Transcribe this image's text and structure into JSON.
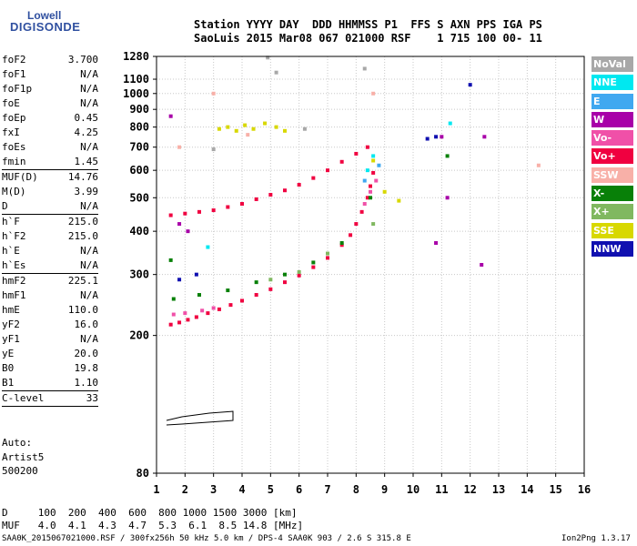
{
  "logo": {
    "line1": "Lowell",
    "line2": "DIGISONDE"
  },
  "header": {
    "line1": "Station YYYY DAY  DDD HHMMSS P1  FFS S AXN PPS IGA PS",
    "line2": "SaoLuis 2015 Mar08 067 021000 RSF    1 715 100 00- 11"
  },
  "params": [
    {
      "key": "foF2",
      "val": "3.700"
    },
    {
      "key": "foF1",
      "val": "N/A"
    },
    {
      "key": "foF1p",
      "val": "N/A"
    },
    {
      "key": "foE",
      "val": "N/A"
    },
    {
      "key": "foEp",
      "val": "0.45"
    },
    {
      "key": "fxI",
      "val": "4.25"
    },
    {
      "key": "foEs",
      "val": "N/A"
    },
    {
      "key": "fmin",
      "val": "1.45"
    },
    {
      "key": "MUF(D)",
      "val": "14.76",
      "sep": true
    },
    {
      "key": "M(D)",
      "val": "3.99"
    },
    {
      "key": "D",
      "val": "N/A"
    },
    {
      "key": "h`F",
      "val": "215.0",
      "sep": true
    },
    {
      "key": "h`F2",
      "val": "215.0"
    },
    {
      "key": "h`E",
      "val": "N/A"
    },
    {
      "key": "h`Es",
      "val": "N/A"
    },
    {
      "key": "hmF2",
      "val": "225.1",
      "sep": true
    },
    {
      "key": "hmF1",
      "val": "N/A"
    },
    {
      "key": "hmE",
      "val": "110.0"
    },
    {
      "key": "yF2",
      "val": "16.0"
    },
    {
      "key": "yF1",
      "val": "N/A"
    },
    {
      "key": "yE",
      "val": "20.0"
    },
    {
      "key": "B0",
      "val": "19.8"
    },
    {
      "key": "B1",
      "val": "1.10"
    },
    {
      "key": "C-level",
      "val": "33",
      "sep": true
    }
  ],
  "auto": {
    "line1": "Auto:",
    "line2": "Artist5",
    "line3": "500200"
  },
  "footer": {
    "d_line": "D     100  200  400  600  800 1000 1500 3000 [km]",
    "muf_line": "MUF   4.0  4.1  4.3  4.7  5.3  6.1  8.5 14.8 [MHz]",
    "info": "SAA0K_2015067021000.RSF / 300fx256h 50 kHz 5.0 km / DPS-4 SAA0K 903 / 2.6 S 315.8 E",
    "version": "Ion2Png 1.3.17"
  },
  "legend": [
    {
      "label": "NoVal",
      "color": "#a8a8a8"
    },
    {
      "label": "NNE",
      "color": "#00e8f0"
    },
    {
      "label": "E",
      "color": "#40a8f0"
    },
    {
      "label": "W",
      "color": "#a800a8"
    },
    {
      "label": "Vo-",
      "color": "#f050a8"
    },
    {
      "label": "Vo+",
      "color": "#f00040"
    },
    {
      "label": "SSW",
      "color": "#f8b0a8"
    },
    {
      "label": "X-",
      "color": "#088008"
    },
    {
      "label": "X+",
      "color": "#80b860"
    },
    {
      "label": "SSE",
      "color": "#d8d800"
    },
    {
      "label": "NNW",
      "color": "#1010b0"
    }
  ],
  "chart_data": {
    "type": "scatter",
    "title": "",
    "xlabel": "",
    "ylabel": "",
    "xlim": [
      1,
      16
    ],
    "ylim": [
      80,
      1280
    ],
    "yscale": "log",
    "grid": true,
    "x_ticks": [
      1,
      2,
      3,
      4,
      5,
      6,
      7,
      8,
      9,
      10,
      11,
      12,
      13,
      14,
      15,
      16
    ],
    "y_ticks": [
      80,
      200,
      300,
      400,
      500,
      600,
      700,
      800,
      900,
      1000,
      1100,
      1280
    ],
    "legend_position": "right",
    "series": [
      {
        "name": "Vo+",
        "color": "#f00040",
        "points": [
          [
            1.5,
            215
          ],
          [
            1.8,
            218
          ],
          [
            2.1,
            222
          ],
          [
            2.4,
            226
          ],
          [
            2.8,
            232
          ],
          [
            3.2,
            238
          ],
          [
            3.6,
            245
          ],
          [
            4.0,
            252
          ],
          [
            4.5,
            262
          ],
          [
            5.0,
            272
          ],
          [
            5.5,
            285
          ],
          [
            6.0,
            298
          ],
          [
            6.5,
            315
          ],
          [
            7.0,
            335
          ],
          [
            7.5,
            365
          ],
          [
            7.8,
            390
          ],
          [
            8.0,
            420
          ],
          [
            8.2,
            455
          ],
          [
            8.4,
            500
          ],
          [
            8.5,
            540
          ],
          [
            8.6,
            590
          ],
          [
            1.5,
            445
          ],
          [
            2.0,
            450
          ],
          [
            2.5,
            455
          ],
          [
            3.0,
            460
          ],
          [
            3.5,
            470
          ],
          [
            4.0,
            480
          ],
          [
            4.5,
            495
          ],
          [
            5.0,
            510
          ],
          [
            5.5,
            525
          ],
          [
            6.0,
            545
          ],
          [
            6.5,
            570
          ],
          [
            7.0,
            600
          ],
          [
            7.5,
            635
          ],
          [
            8.0,
            670
          ],
          [
            8.4,
            700
          ]
        ]
      },
      {
        "name": "Vo-",
        "color": "#f050a8",
        "points": [
          [
            1.6,
            230
          ],
          [
            2.0,
            232
          ],
          [
            2.6,
            236
          ],
          [
            3.0,
            240
          ],
          [
            8.3,
            480
          ],
          [
            8.5,
            520
          ],
          [
            8.7,
            560
          ]
        ]
      },
      {
        "name": "X-",
        "color": "#088008",
        "points": [
          [
            1.6,
            255
          ],
          [
            2.5,
            262
          ],
          [
            3.5,
            270
          ],
          [
            4.5,
            285
          ],
          [
            5.5,
            300
          ],
          [
            6.5,
            325
          ],
          [
            7.5,
            370
          ],
          [
            8.5,
            500
          ],
          [
            11.2,
            660
          ],
          [
            1.5,
            330
          ]
        ]
      },
      {
        "name": "X+",
        "color": "#80b860",
        "points": [
          [
            5.0,
            290
          ],
          [
            6.0,
            305
          ],
          [
            7.0,
            345
          ],
          [
            8.6,
            420
          ]
        ]
      },
      {
        "name": "SSE",
        "color": "#d8d800",
        "points": [
          [
            3.2,
            790
          ],
          [
            3.5,
            800
          ],
          [
            3.8,
            780
          ],
          [
            4.1,
            810
          ],
          [
            4.4,
            790
          ],
          [
            4.8,
            820
          ],
          [
            5.2,
            800
          ],
          [
            5.5,
            780
          ],
          [
            8.6,
            640
          ],
          [
            9.0,
            520
          ],
          [
            9.5,
            490
          ]
        ]
      },
      {
        "name": "NNE",
        "color": "#00e8f0",
        "points": [
          [
            8.4,
            600
          ],
          [
            8.6,
            660
          ],
          [
            11.3,
            820
          ],
          [
            2.8,
            360
          ]
        ]
      },
      {
        "name": "E",
        "color": "#40a8f0",
        "points": [
          [
            8.3,
            560
          ],
          [
            8.8,
            620
          ]
        ]
      },
      {
        "name": "W",
        "color": "#a800a8",
        "points": [
          [
            1.5,
            860
          ],
          [
            1.8,
            420
          ],
          [
            2.1,
            400
          ],
          [
            11.0,
            750
          ],
          [
            12.5,
            750
          ],
          [
            10.8,
            370
          ],
          [
            12.4,
            320
          ],
          [
            11.2,
            500
          ]
        ]
      },
      {
        "name": "SSW",
        "color": "#f8b0a8",
        "points": [
          [
            1.8,
            700
          ],
          [
            3.0,
            1000
          ],
          [
            4.2,
            760
          ],
          [
            8.6,
            1000
          ],
          [
            14.4,
            620
          ]
        ]
      },
      {
        "name": "NNW",
        "color": "#1010b0",
        "points": [
          [
            1.8,
            290
          ],
          [
            2.4,
            300
          ],
          [
            10.5,
            740
          ],
          [
            10.8,
            750
          ],
          [
            12.0,
            1060
          ]
        ]
      },
      {
        "name": "NoVal",
        "color": "#a8a8a8",
        "points": [
          [
            4.9,
            1270
          ],
          [
            5.2,
            1150
          ],
          [
            6.2,
            790
          ],
          [
            8.3,
            1180
          ],
          [
            3.0,
            690
          ]
        ]
      }
    ]
  }
}
